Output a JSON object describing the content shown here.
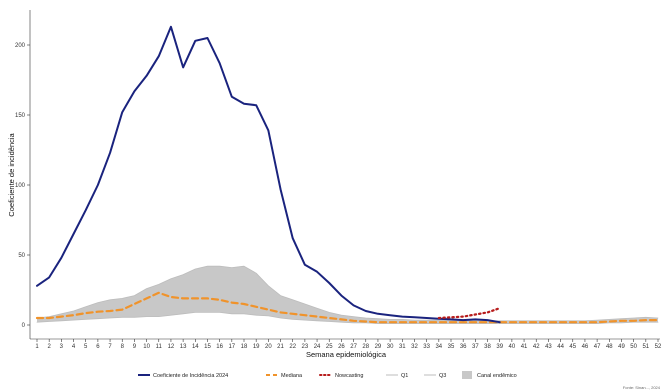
{
  "chart_data": {
    "type": "line",
    "xlabel": "Semana epidemiológica",
    "ylabel": "Coeficiente de incidência",
    "ylim": [
      0,
      220
    ],
    "y_ticks": [
      0,
      50,
      100,
      150,
      200
    ],
    "x_ticks": [
      1,
      2,
      3,
      4,
      5,
      6,
      7,
      8,
      9,
      10,
      11,
      12,
      13,
      14,
      15,
      16,
      17,
      18,
      19,
      20,
      21,
      22,
      23,
      24,
      25,
      26,
      27,
      28,
      29,
      30,
      31,
      32,
      33,
      34,
      35,
      36,
      37,
      38,
      39,
      40,
      41,
      42,
      43,
      44,
      45,
      46,
      47,
      48,
      49,
      50,
      51,
      52
    ],
    "grid": false,
    "legend_position": "bottom",
    "x": [
      1,
      2,
      3,
      4,
      5,
      6,
      7,
      8,
      9,
      10,
      11,
      12,
      13,
      14,
      15,
      16,
      17,
      18,
      19,
      20,
      21,
      22,
      23,
      24,
      25,
      26,
      27,
      28,
      29,
      30,
      31,
      32,
      33,
      34,
      35,
      36,
      37,
      38,
      39,
      40,
      41,
      42,
      43,
      44,
      45,
      46,
      47,
      48,
      49,
      50,
      51,
      52
    ],
    "series": [
      {
        "name": "Coeficiente de Incidência 2024",
        "style": "solid",
        "color": "#1a237e",
        "values": [
          28,
          34,
          48,
          65,
          82,
          100,
          123,
          152,
          167,
          178,
          192,
          213,
          184,
          203,
          205,
          187,
          163,
          158,
          157,
          139,
          97,
          62,
          43,
          38,
          30,
          21,
          14,
          10,
          8,
          7,
          6,
          5.5,
          5,
          4.5,
          4,
          3.5,
          4,
          3.5,
          2,
          null,
          null,
          null,
          null,
          null,
          null,
          null,
          null,
          null,
          null,
          null,
          null,
          null
        ]
      },
      {
        "name": "Mediana",
        "style": "dashed",
        "color": "#f0932b",
        "values": [
          5,
          5,
          6,
          7,
          8.5,
          9.5,
          10,
          11,
          15,
          19,
          23,
          20,
          19,
          19,
          19,
          18,
          16,
          15,
          13,
          11,
          9,
          8,
          7,
          6,
          5,
          4,
          3,
          2.5,
          2,
          2,
          2,
          2,
          2,
          2,
          2,
          2,
          2,
          2,
          2,
          2,
          2,
          2,
          2,
          2,
          2,
          2,
          2,
          2.5,
          3,
          3,
          3.5,
          3.5
        ]
      },
      {
        "name": "Nowcasting",
        "style": "dotted",
        "color": "#b71c1c",
        "values": [
          null,
          null,
          null,
          null,
          null,
          null,
          null,
          null,
          null,
          null,
          null,
          null,
          null,
          null,
          null,
          null,
          null,
          null,
          null,
          null,
          null,
          null,
          null,
          null,
          null,
          null,
          null,
          null,
          null,
          null,
          null,
          null,
          null,
          5,
          5.5,
          6,
          7.5,
          9,
          12,
          null,
          null,
          null,
          null,
          null,
          null,
          null,
          null,
          null,
          null,
          null,
          null,
          null
        ]
      },
      {
        "name": "Q1",
        "style": "solid",
        "color": "#bdbdbd",
        "values": [
          2,
          2.5,
          3,
          3.5,
          4,
          4.5,
          5,
          5.5,
          5.5,
          6,
          6,
          7,
          8,
          9,
          9,
          9,
          8,
          8,
          7,
          6.5,
          5,
          4,
          3.5,
          3,
          2.5,
          2,
          1.5,
          1.5,
          1,
          1,
          1,
          1,
          1,
          1,
          1,
          1,
          1,
          1,
          1,
          1,
          1,
          1,
          1,
          1,
          1,
          1,
          1,
          1.5,
          1.5,
          2,
          2,
          2
        ]
      },
      {
        "name": "Q3",
        "style": "solid",
        "color": "#bdbdbd",
        "values": [
          5,
          6,
          8,
          10,
          13,
          16,
          18,
          19,
          21,
          26,
          29,
          33,
          36,
          40,
          42,
          42,
          41,
          42,
          37,
          28,
          21,
          18,
          15,
          12,
          9,
          7,
          6,
          5,
          4.5,
          4,
          4,
          3.5,
          3.5,
          3.5,
          3.5,
          3.5,
          3.5,
          3,
          3,
          3,
          3,
          3,
          3,
          3,
          3,
          3,
          3.5,
          4,
          4.5,
          5,
          5.5,
          5
        ]
      }
    ],
    "band": {
      "name": "Canal endêmico",
      "lower_series": "Q1",
      "upper_series": "Q3",
      "color": "#c8c8c8"
    }
  },
  "legend": {
    "items": [
      {
        "label": "Coeficiente de Incidência 2024",
        "style": "solid",
        "color": "#1a237e"
      },
      {
        "label": "Mediana",
        "style": "dashed",
        "color": "#f0932b"
      },
      {
        "label": "Nowcasting",
        "style": "dotted",
        "color": "#b71c1c"
      },
      {
        "label": "Q1",
        "style": "solid",
        "color": "#bdbdbd"
      },
      {
        "label": "Q3",
        "style": "solid",
        "color": "#bdbdbd"
      },
      {
        "label": "Canal endêmico",
        "style": "box",
        "color": "#c8c8c8"
      }
    ]
  },
  "source_note": "Fonte: Sinan..., 2024"
}
